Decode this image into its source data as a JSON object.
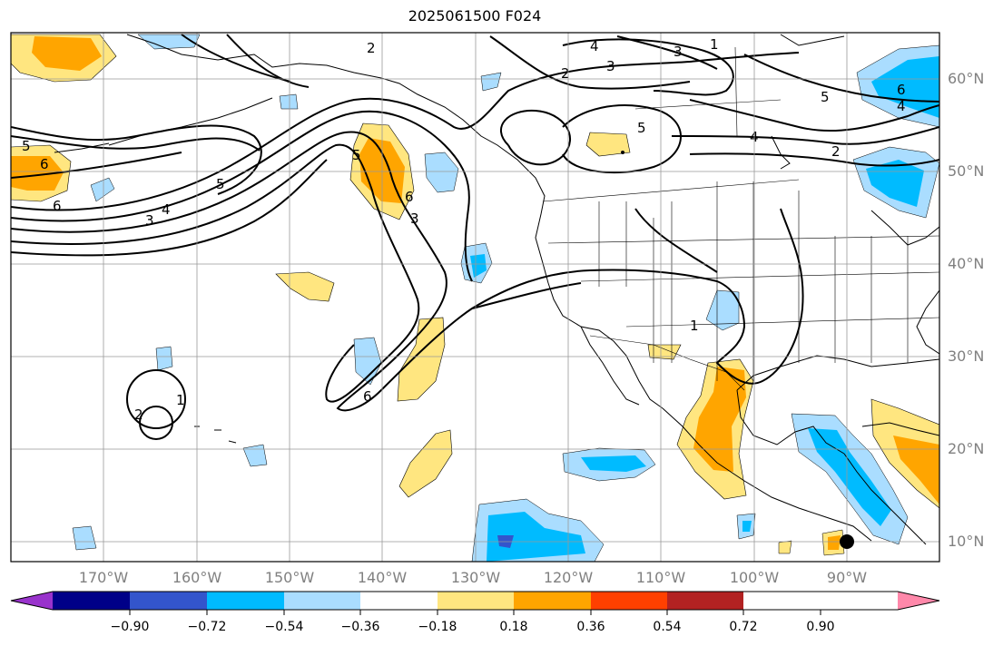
{
  "title": "2025061500 F024",
  "lat_labels": [
    "60°N",
    "50°N",
    "40°N",
    "30°N",
    "20°N",
    "10°N"
  ],
  "lon_labels": [
    "170°W",
    "160°W",
    "150°W",
    "140°W",
    "130°W",
    "120°W",
    "110°W",
    "100°W",
    "90°W"
  ],
  "colorbar": {
    "labels": [
      "−0.90",
      "−0.72",
      "−0.54",
      "−0.36",
      "−0.18",
      "0.18",
      "0.36",
      "0.54",
      "0.72",
      "0.90"
    ],
    "colors": [
      "#9933cc",
      "#000088",
      "#3355cc",
      "#00bbff",
      "#aaddff",
      "#ffffff",
      "#ffe680",
      "#ffa500",
      "#ff4000",
      "#b22222",
      "#ff88aa"
    ]
  },
  "contour_labels": [
    "2",
    "4",
    "3",
    "2",
    "3",
    "1",
    "5",
    "6",
    "4",
    "5",
    "2",
    "5",
    "6",
    "6",
    "6",
    "5",
    "3",
    "4",
    "3",
    "5",
    "6",
    "4",
    "2",
    "1",
    "1"
  ]
}
